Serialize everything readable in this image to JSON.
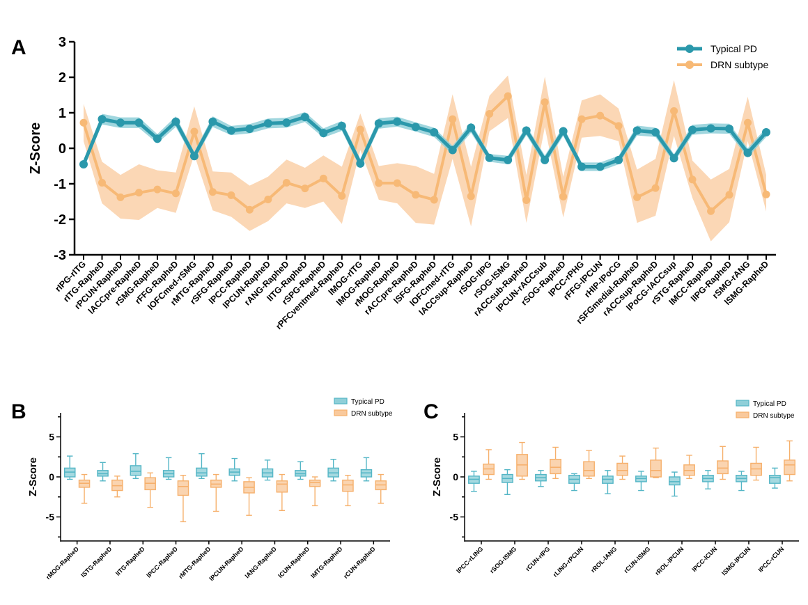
{
  "colors": {
    "typical": "#2a98ab",
    "typical_band": "#8fcfd8",
    "drn": "#f7b976",
    "drn_band": "#f9c99c",
    "typical_box": "#54b6c6",
    "drn_box": "#f6b06c"
  },
  "panels": [
    {
      "letter": "A"
    },
    {
      "letter": "B"
    },
    {
      "letter": "C"
    }
  ],
  "chart_data": [
    {
      "type": "line",
      "panel": "A",
      "ylabel": "Z-Score",
      "ylim": [
        -3,
        3
      ],
      "yticks": [
        "-3",
        "-2",
        "-1",
        "0",
        "1",
        "2",
        "3"
      ],
      "legend_position": "top-right",
      "categories": [
        "rIPG-rITG",
        "rITG-RapheD",
        "rPCUN-RapheD",
        "lACCpre-RapheD",
        "rSMG-RapheD",
        "rFFG-RapheD",
        "lOFCmed-rSMG",
        "rMTG-RapheD",
        "rSFG-RapheD",
        "lPCC-RapheD",
        "lPCUN-RapheD",
        "rANG-RapheD",
        "lITG-RapheD",
        "rSPG-RapheD",
        "rPFCventmed-RapheD",
        "lMOG-rITG",
        "lMOG-RapheD",
        "rMOG-RapheD",
        "rACCpre-RapheD",
        "lSFG-RapheD",
        "lOFCmed-rITG",
        "lACCsup-RapheD",
        "rSOG-lIPG",
        "rSOG-lSMG",
        "rACCsub-RapheD",
        "lPCUN-rACCsub",
        "rSOG-RapheD",
        "lPCC-rPHG",
        "rFFG-lPCUN",
        "rHIP-lPoCG",
        "rSFGmedial-RapheD",
        "rACCsup-RapheD",
        "lPoCG-lACCsup",
        "rSTG-RapheD",
        "lMCC-RapheD",
        "lIPG-RapheD",
        "rSMG-rANG",
        "lSMG-RapheD"
      ],
      "series": [
        {
          "name": "Typical PD",
          "values": [
            -0.45,
            0.82,
            0.72,
            0.72,
            0.27,
            0.75,
            -0.22,
            0.75,
            0.5,
            0.55,
            0.7,
            0.72,
            0.88,
            0.43,
            0.63,
            -0.43,
            0.7,
            0.75,
            0.6,
            0.45,
            -0.05,
            0.58,
            -0.27,
            -0.33,
            0.5,
            -0.33,
            0.48,
            -0.52,
            -0.52,
            -0.33,
            0.5,
            0.45,
            -0.28,
            0.52,
            0.56,
            0.55,
            -0.13,
            0.45
          ],
          "lower": [
            -0.57,
            0.67,
            0.57,
            0.57,
            0.14,
            0.6,
            -0.34,
            0.6,
            0.37,
            0.42,
            0.56,
            0.58,
            0.74,
            0.3,
            0.49,
            -0.56,
            0.55,
            0.61,
            0.47,
            0.32,
            -0.17,
            0.44,
            -0.38,
            -0.45,
            0.37,
            -0.46,
            0.35,
            -0.64,
            -0.64,
            -0.45,
            0.36,
            0.32,
            -0.4,
            0.38,
            0.42,
            0.41,
            -0.26,
            0.32
          ],
          "upper": [
            -0.33,
            0.97,
            0.87,
            0.87,
            0.4,
            0.9,
            -0.1,
            0.9,
            0.63,
            0.68,
            0.84,
            0.86,
            1.02,
            0.56,
            0.77,
            -0.3,
            0.85,
            0.89,
            0.73,
            0.58,
            0.07,
            0.72,
            -0.16,
            -0.21,
            0.63,
            -0.2,
            0.61,
            -0.4,
            -0.4,
            -0.21,
            0.64,
            0.58,
            -0.16,
            0.66,
            0.7,
            0.69,
            0.0,
            0.58
          ]
        },
        {
          "name": "DRN subtype",
          "values": [
            0.72,
            -0.97,
            -1.38,
            -1.25,
            -1.16,
            -1.27,
            0.47,
            -1.23,
            -1.32,
            -1.73,
            -1.44,
            -0.97,
            -1.13,
            -0.85,
            -1.34,
            0.53,
            -0.98,
            -0.98,
            -1.31,
            -1.45,
            0.82,
            -1.35,
            0.97,
            1.47,
            -1.46,
            1.3,
            -1.36,
            0.82,
            0.92,
            0.63,
            -1.38,
            -1.12,
            1.05,
            -0.88,
            -1.77,
            -1.31,
            0.72,
            -1.3
          ],
          "lower": [
            0.2,
            -1.55,
            -1.98,
            -2.02,
            -1.68,
            -1.82,
            -0.18,
            -1.75,
            -1.93,
            -2.33,
            -2.05,
            -1.55,
            -1.68,
            -1.5,
            -2.13,
            -0.05,
            -1.45,
            -1.55,
            -2.1,
            -2.15,
            -0.3,
            -2.2,
            0.48,
            0.85,
            -2.1,
            0.6,
            -1.95,
            0.3,
            0.35,
            0.2,
            -2.1,
            -1.9,
            0.35,
            -1.4,
            -2.62,
            -2.08,
            0.2,
            -1.78
          ],
          "upper": [
            1.25,
            -0.38,
            -0.75,
            -0.45,
            -0.62,
            -0.68,
            1.18,
            -0.65,
            -0.68,
            -1.05,
            -0.8,
            -0.32,
            -0.55,
            -0.2,
            -0.52,
            0.98,
            -0.5,
            -0.42,
            -0.5,
            -0.72,
            1.52,
            -0.52,
            1.48,
            2.05,
            -0.75,
            2.02,
            -0.8,
            1.35,
            1.52,
            1.12,
            -0.6,
            -0.3,
            1.92,
            -0.35,
            -0.88,
            -0.58,
            1.45,
            -0.75
          ]
        }
      ]
    },
    {
      "type": "box",
      "panel": "B",
      "ylabel": "Z-Score",
      "ylim": [
        -8,
        8
      ],
      "yticks": [
        "-5",
        "0",
        "5"
      ],
      "legend_position": "top-right",
      "categories": [
        "rMOG-RapheD",
        "lSTG-RapheD",
        "lITG-RapheD",
        "lPCC-RapheD",
        "rMTG-RapheD",
        "lPCUN-RapheD",
        "lANG-RapheD",
        "lCUN-RapheD",
        "lMTG-RapheD",
        "rCUN-RapheD"
      ],
      "series": [
        {
          "name": "Typical PD",
          "boxes": [
            [
              -0.3,
              0.0,
              0.6,
              1.1,
              2.6
            ],
            [
              -0.5,
              0.1,
              0.4,
              0.8,
              1.8
            ],
            [
              -0.2,
              0.2,
              0.7,
              1.4,
              2.9
            ],
            [
              -0.3,
              0.0,
              0.4,
              0.8,
              2.4
            ],
            [
              -0.2,
              0.1,
              0.5,
              1.1,
              2.9
            ],
            [
              -0.5,
              0.2,
              0.6,
              1.0,
              2.3
            ],
            [
              -0.4,
              0.0,
              0.5,
              1.0,
              2.1
            ],
            [
              -0.3,
              0.1,
              0.4,
              0.8,
              1.9
            ],
            [
              -0.5,
              0.0,
              0.5,
              1.1,
              2.2
            ],
            [
              -0.5,
              0.0,
              0.5,
              0.9,
              2.4
            ]
          ]
        },
        {
          "name": "DRN subtype",
          "boxes": [
            [
              -3.3,
              -1.3,
              -0.8,
              -0.4,
              0.3
            ],
            [
              -2.5,
              -1.7,
              -1.1,
              -0.4,
              0.1
            ],
            [
              -3.8,
              -1.6,
              -0.8,
              -0.1,
              0.5
            ],
            [
              -5.6,
              -2.3,
              -1.2,
              -0.5,
              0.2
            ],
            [
              -4.3,
              -1.3,
              -0.9,
              -0.4,
              0.3
            ],
            [
              -4.8,
              -2.0,
              -1.3,
              -0.6,
              -0.1
            ],
            [
              -4.2,
              -1.9,
              -0.9,
              -0.5,
              0.3
            ],
            [
              -3.6,
              -1.2,
              -0.7,
              -0.4,
              0.0
            ],
            [
              -3.6,
              -1.8,
              -1.0,
              -0.4,
              0.2
            ],
            [
              -3.3,
              -1.6,
              -1.0,
              -0.5,
              0.3
            ]
          ]
        }
      ]
    },
    {
      "type": "box",
      "panel": "C",
      "ylabel": "Z-Score",
      "ylim": [
        -8,
        8
      ],
      "yticks": [
        "-5",
        "0",
        "5"
      ],
      "legend_position": "top-right",
      "categories": [
        "lPCC-rLING",
        "rSOG-lSMG",
        "rCUN-rIPG",
        "rLING-rPCUN",
        "rROL-lANG",
        "rCUN-lSMG",
        "rROL-lPCUN",
        "lPCC-lCUN",
        "lSMG-lPCUN",
        "lPCC-rCUN"
      ],
      "series": [
        {
          "name": "Typical PD",
          "boxes": [
            [
              -1.8,
              -0.8,
              -0.3,
              0.1,
              0.7
            ],
            [
              -2.2,
              -0.7,
              -0.2,
              0.3,
              0.9
            ],
            [
              -1.2,
              -0.5,
              -0.1,
              0.3,
              0.8
            ],
            [
              -1.7,
              -0.8,
              -0.3,
              0.2,
              0.4
            ],
            [
              -2.1,
              -0.8,
              -0.3,
              0.1,
              0.8
            ],
            [
              -1.7,
              -0.6,
              -0.2,
              0.1,
              0.7
            ],
            [
              -2.4,
              -1.0,
              -0.6,
              0.0,
              0.6
            ],
            [
              -1.5,
              -0.6,
              -0.2,
              0.2,
              0.8
            ],
            [
              -1.7,
              -0.6,
              -0.2,
              0.2,
              0.7
            ],
            [
              -1.4,
              -0.8,
              -0.1,
              0.2,
              1.1
            ]
          ]
        },
        {
          "name": "DRN subtype",
          "boxes": [
            [
              -0.3,
              0.3,
              1.0,
              1.6,
              3.4
            ],
            [
              -0.3,
              0.1,
              1.5,
              2.8,
              4.3
            ],
            [
              -0.2,
              0.4,
              1.2,
              2.2,
              3.7
            ],
            [
              -0.2,
              0.1,
              0.8,
              1.9,
              3.3
            ],
            [
              -0.3,
              0.2,
              0.8,
              1.7,
              2.6
            ],
            [
              -0.1,
              0.0,
              0.8,
              2.1,
              3.6
            ],
            [
              -0.2,
              0.2,
              0.8,
              1.5,
              2.7
            ],
            [
              -0.3,
              0.4,
              1.1,
              2.0,
              3.8
            ],
            [
              -0.4,
              0.2,
              1.0,
              1.7,
              3.7
            ],
            [
              -0.5,
              0.3,
              1.5,
              2.1,
              4.5
            ]
          ]
        }
      ]
    }
  ]
}
